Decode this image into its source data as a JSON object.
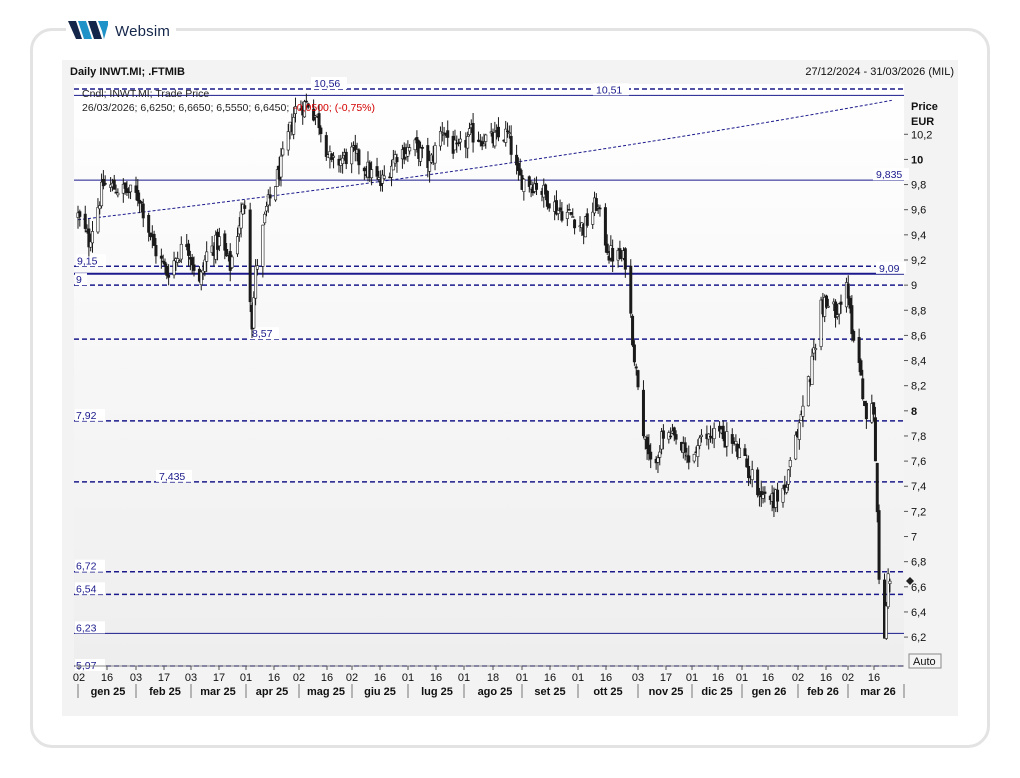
{
  "brand": {
    "name": "Websim"
  },
  "header": {
    "title": "Daily INWT.MI; .FTMIB",
    "range": "27/12/2024 - 31/03/2026 (MIL)"
  },
  "legend": {
    "line1": "Cndl; INWT.MI; Trade Price",
    "line2_ohlc": "26/03/2026; 6,6250; 6,6650; 6,5550; 6,6450;",
    "line2_change": "-0,0500; (-0,75%)"
  },
  "auto_button": "Auto",
  "chart_data": {
    "type": "candlestick",
    "title": "Daily INWT.MI; .FTMIB",
    "ylabel": "Price EUR",
    "yaxis_title_line1": "Price",
    "yaxis_title_line2": "EUR",
    "ylim": [
      5.97,
      10.6
    ],
    "yticks": [
      {
        "v": 10.2,
        "label": "10,2",
        "bold": false
      },
      {
        "v": 10.0,
        "label": "10",
        "bold": true
      },
      {
        "v": 9.8,
        "label": "9,8",
        "bold": false
      },
      {
        "v": 9.6,
        "label": "9,6",
        "bold": false
      },
      {
        "v": 9.4,
        "label": "9,4",
        "bold": false
      },
      {
        "v": 9.2,
        "label": "9,2",
        "bold": false
      },
      {
        "v": 9.0,
        "label": "9",
        "bold": false
      },
      {
        "v": 8.8,
        "label": "8,8",
        "bold": false
      },
      {
        "v": 8.6,
        "label": "8,6",
        "bold": false
      },
      {
        "v": 8.4,
        "label": "8,4",
        "bold": false
      },
      {
        "v": 8.2,
        "label": "8,2",
        "bold": false
      },
      {
        "v": 8.0,
        "label": "8",
        "bold": true
      },
      {
        "v": 7.8,
        "label": "7,8",
        "bold": false
      },
      {
        "v": 7.6,
        "label": "7,6",
        "bold": false
      },
      {
        "v": 7.4,
        "label": "7,4",
        "bold": false
      },
      {
        "v": 7.2,
        "label": "7,2",
        "bold": false
      },
      {
        "v": 7.0,
        "label": "7",
        "bold": false
      },
      {
        "v": 6.8,
        "label": "6,8",
        "bold": false
      },
      {
        "v": 6.6,
        "label": "6,6",
        "bold": false
      },
      {
        "v": 6.4,
        "label": "6,4",
        "bold": false
      },
      {
        "v": 6.2,
        "label": "6,2",
        "bold": false
      }
    ],
    "x_day_ticks": [
      "02",
      "16",
      "03",
      "17",
      "03",
      "17",
      "01",
      "16",
      "02",
      "16",
      "02",
      "16",
      "01",
      "16",
      "01",
      "18",
      "01",
      "16",
      "01",
      "16",
      "03",
      "17",
      "01",
      "16",
      "01",
      "16",
      "02",
      "16",
      "02",
      "16"
    ],
    "x_month_labels": [
      "gen 25",
      "feb 25",
      "mar 25",
      "apr 25",
      "mag 25",
      "giu 25",
      "lug 25",
      "ago 25",
      "set 25",
      "ott 25",
      "nov 25",
      "dic 25",
      "gen 26",
      "feb 26",
      "mar 26"
    ],
    "levels": [
      {
        "value": 10.56,
        "label": "10,56",
        "style": "dashed"
      },
      {
        "value": 10.51,
        "label": "10,51",
        "style": "solid"
      },
      {
        "value": 9.835,
        "label": "9,835",
        "style": "solid"
      },
      {
        "value": 9.15,
        "label": "9,15",
        "style": "dashed"
      },
      {
        "value": 9.09,
        "label": "9,09",
        "style": "solid"
      },
      {
        "value": 9.0,
        "label": "9",
        "style": "dashed"
      },
      {
        "value": 8.57,
        "label": "8,57",
        "style": "dashed"
      },
      {
        "value": 7.92,
        "label": "7,92",
        "style": "dashed"
      },
      {
        "value": 7.435,
        "label": "7,435",
        "style": "dashed"
      },
      {
        "value": 6.72,
        "label": "6,72",
        "style": "dashed"
      },
      {
        "value": 6.54,
        "label": "6,54",
        "style": "dashed"
      },
      {
        "value": 6.23,
        "label": "6,23",
        "style": "solid"
      },
      {
        "value": 5.97,
        "label": "5,97",
        "style": "dashed"
      }
    ],
    "moving_average_endpoints": [
      {
        "date": "2025-01-02",
        "value": 9.52
      },
      {
        "date": "2026-03-27",
        "value": 10.47
      }
    ],
    "path_anchors": [
      {
        "date": "2025-01-02",
        "value": 9.55
      },
      {
        "date": "2025-01-08",
        "value": 9.35
      },
      {
        "date": "2025-01-16",
        "value": 9.8
      },
      {
        "date": "2025-01-28",
        "value": 9.75
      },
      {
        "date": "2025-02-05",
        "value": 9.7
      },
      {
        "date": "2025-02-13",
        "value": 9.3
      },
      {
        "date": "2025-02-20",
        "value": 9.1
      },
      {
        "date": "2025-03-03",
        "value": 9.35
      },
      {
        "date": "2025-03-10",
        "value": 9.0
      },
      {
        "date": "2025-03-14",
        "value": 9.25
      },
      {
        "date": "2025-03-21",
        "value": 9.35
      },
      {
        "date": "2025-03-27",
        "value": 9.15
      },
      {
        "date": "2025-04-01",
        "value": 9.5
      },
      {
        "date": "2025-04-04",
        "value": 9.65
      },
      {
        "date": "2025-04-08",
        "value": 8.7
      },
      {
        "date": "2025-04-10",
        "value": 9.1
      },
      {
        "date": "2025-04-16",
        "value": 9.6
      },
      {
        "date": "2025-04-24",
        "value": 9.95
      },
      {
        "date": "2025-05-02",
        "value": 10.4
      },
      {
        "date": "2025-05-09",
        "value": 10.45
      },
      {
        "date": "2025-05-15",
        "value": 10.3
      },
      {
        "date": "2025-05-22",
        "value": 9.95
      },
      {
        "date": "2025-06-02",
        "value": 10.05
      },
      {
        "date": "2025-06-12",
        "value": 9.9
      },
      {
        "date": "2025-06-18",
        "value": 9.8
      },
      {
        "date": "2025-06-27",
        "value": 10.05
      },
      {
        "date": "2025-07-07",
        "value": 10.1
      },
      {
        "date": "2025-07-15",
        "value": 9.95
      },
      {
        "date": "2025-07-22",
        "value": 10.25
      },
      {
        "date": "2025-07-30",
        "value": 10.05
      },
      {
        "date": "2025-08-07",
        "value": 10.2
      },
      {
        "date": "2025-08-18",
        "value": 10.15
      },
      {
        "date": "2025-08-27",
        "value": 10.2
      },
      {
        "date": "2025-09-02",
        "value": 9.85
      },
      {
        "date": "2025-09-12",
        "value": 9.8
      },
      {
        "date": "2025-09-24",
        "value": 9.6
      },
      {
        "date": "2025-10-02",
        "value": 9.55
      },
      {
        "date": "2025-10-08",
        "value": 9.45
      },
      {
        "date": "2025-10-15",
        "value": 9.65
      },
      {
        "date": "2025-10-22",
        "value": 9.25
      },
      {
        "date": "2025-10-31",
        "value": 9.2
      },
      {
        "date": "2025-11-06",
        "value": 8.3
      },
      {
        "date": "2025-11-10",
        "value": 7.8
      },
      {
        "date": "2025-11-14",
        "value": 7.55
      },
      {
        "date": "2025-11-21",
        "value": 7.8
      },
      {
        "date": "2025-11-28",
        "value": 7.75
      },
      {
        "date": "2025-12-05",
        "value": 7.6
      },
      {
        "date": "2025-12-12",
        "value": 7.75
      },
      {
        "date": "2025-12-19",
        "value": 7.85
      },
      {
        "date": "2025-12-29",
        "value": 7.75
      },
      {
        "date": "2026-01-06",
        "value": 7.55
      },
      {
        "date": "2026-01-14",
        "value": 7.35
      },
      {
        "date": "2026-01-21",
        "value": 7.3
      },
      {
        "date": "2026-01-28",
        "value": 7.4
      },
      {
        "date": "2026-02-04",
        "value": 7.9
      },
      {
        "date": "2026-02-10",
        "value": 8.3
      },
      {
        "date": "2026-02-16",
        "value": 8.85
      },
      {
        "date": "2026-02-23",
        "value": 8.8
      },
      {
        "date": "2026-03-02",
        "value": 8.95
      },
      {
        "date": "2026-03-06",
        "value": 8.6
      },
      {
        "date": "2026-03-10",
        "value": 8.3
      },
      {
        "date": "2026-03-13",
        "value": 7.9
      },
      {
        "date": "2026-03-17",
        "value": 8.05
      },
      {
        "date": "2026-03-19",
        "value": 7.2
      },
      {
        "date": "2026-03-20",
        "value": 6.6
      },
      {
        "date": "2026-03-23",
        "value": 6.2
      },
      {
        "date": "2026-03-24",
        "value": 6.5
      },
      {
        "date": "2026-03-25",
        "value": 6.75
      },
      {
        "date": "2026-03-26",
        "value": 6.645
      }
    ],
    "last_candle": {
      "date": "2026-03-26",
      "open": 6.625,
      "high": 6.665,
      "low": 6.555,
      "close": 6.645
    },
    "colors": {
      "up": "#ffffff",
      "down": "#1a1a1a",
      "level": "#1a1a8c",
      "change": "#d40000"
    }
  }
}
